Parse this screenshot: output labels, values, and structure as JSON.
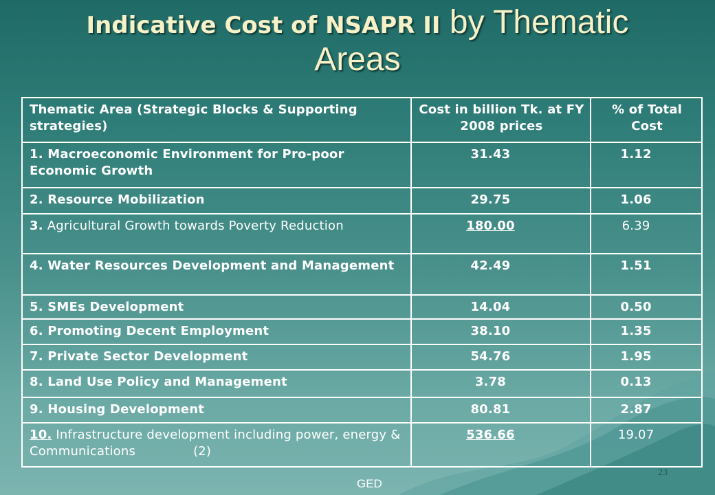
{
  "slide": {
    "title_bold": "Indicative Cost of NSAPR II",
    "title_light": " by Thematic",
    "title_line2": "Areas",
    "footer": "GED",
    "page_number": "23"
  },
  "table": {
    "headers": {
      "area": "Thematic Area (Strategic Blocks & Supporting strategies)",
      "cost": "Cost in billion Tk. at FY 2008 prices",
      "percent": "% of Total Cost"
    },
    "rows": [
      {
        "num": "1.",
        "label": "Macroeconomic Environment for Pro-poor Economic Growth",
        "cost": "31.43",
        "percent": "1.12"
      },
      {
        "num": "2.",
        "label": "Resource Mobilization",
        "cost": "29.75",
        "percent": "1.06"
      },
      {
        "num": "3.",
        "label": "Agricultural Growth towards Poverty Reduction",
        "cost": "180.00",
        "percent": "6.39"
      },
      {
        "num": "4.",
        "label": "Water Resources Development and Management",
        "cost": "42.49",
        "percent": "1.51"
      },
      {
        "num": "5.",
        "label": "SMEs Development",
        "cost": "14.04",
        "percent": "0.50"
      },
      {
        "num": "6.",
        "label": "Promoting Decent Employment",
        "cost": "38.10",
        "percent": "1.35"
      },
      {
        "num": "7.",
        "label": "Private Sector Development",
        "cost": "54.76",
        "percent": "1.95"
      },
      {
        "num": "8.",
        "label": "Land Use Policy and Management",
        "cost": "3.78",
        "percent": "0.13"
      },
      {
        "num": "9.",
        "label": "Housing Development",
        "cost": "80.81",
        "percent": "2.87"
      },
      {
        "num": "10.",
        "label": "Infrastructure development including power, energy & Communications",
        "note": "(2)",
        "cost": "536.66",
        "percent": "19.07"
      }
    ]
  }
}
